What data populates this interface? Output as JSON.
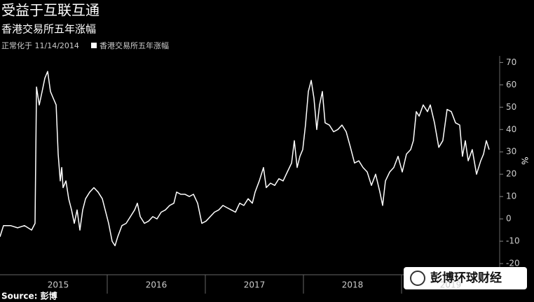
{
  "chart_data": {
    "type": "line",
    "title": "受益于互联互通",
    "subtitle": "香港交易所五年涨幅",
    "note": "正常化于 11/14/2014",
    "y_axis_label": "%",
    "source": "Source: 彭博",
    "watermark": "彭博环球财经",
    "grid": false,
    "xlim": [
      2014.907,
      2020
    ],
    "xticks": [
      {
        "value": 2015.5,
        "label": "2015"
      },
      {
        "value": 2016.5,
        "label": "2016"
      },
      {
        "value": 2017.5,
        "label": "2017"
      },
      {
        "value": 2018.5,
        "label": "2018"
      },
      {
        "value": 2019.5,
        "label": "2019"
      }
    ],
    "ylim": [
      -25,
      72
    ],
    "yticks": [
      -20,
      -10,
      0,
      10,
      20,
      30,
      40,
      50,
      60,
      70
    ],
    "x": [
      2014.907,
      2014.943,
      2015.014,
      2015.086,
      2015.157,
      2015.229,
      2015.264,
      2015.279,
      2015.307,
      2015.336,
      2015.364,
      2015.393,
      2015.421,
      2015.45,
      2015.479,
      2015.5,
      2015.521,
      2015.536,
      2015.55,
      2015.579,
      2015.607,
      2015.636,
      2015.664,
      2015.693,
      2015.721,
      2015.75,
      2015.779,
      2015.821,
      2015.864,
      2015.907,
      2015.95,
      2015.979,
      2016.014,
      2016.05,
      2016.079,
      2016.107,
      2016.15,
      2016.193,
      2016.236,
      2016.279,
      2016.307,
      2016.336,
      2016.379,
      2016.421,
      2016.464,
      2016.507,
      2016.55,
      2016.593,
      2016.636,
      2016.679,
      2016.707,
      2016.75,
      2016.793,
      2016.836,
      2016.879,
      2016.921,
      2016.964,
      2017.007,
      2017.05,
      2017.093,
      2017.136,
      2017.179,
      2017.221,
      2017.264,
      2017.307,
      2017.35,
      2017.393,
      2017.436,
      2017.479,
      2017.507,
      2017.55,
      2017.593,
      2017.621,
      2017.664,
      2017.707,
      2017.75,
      2017.793,
      2017.836,
      2017.879,
      2017.907,
      2017.936,
      2017.964,
      2017.993,
      2018.021,
      2018.05,
      2018.079,
      2018.107,
      2018.136,
      2018.164,
      2018.193,
      2018.221,
      2018.264,
      2018.307,
      2018.35,
      2018.393,
      2018.436,
      2018.479,
      2018.521,
      2018.564,
      2018.607,
      2018.65,
      2018.693,
      2018.736,
      2018.779,
      2018.807,
      2018.836,
      2018.879,
      2018.921,
      2018.964,
      2019.007,
      2019.05,
      2019.093,
      2019.121,
      2019.15,
      2019.179,
      2019.221,
      2019.264,
      2019.293,
      2019.336,
      2019.379,
      2019.421,
      2019.464,
      2019.507,
      2019.55,
      2019.593,
      2019.621,
      2019.65,
      2019.679,
      2019.721,
      2019.764,
      2019.807,
      2019.836,
      2019.864,
      2019.893
    ],
    "series": [
      {
        "name": "香港交易所五年涨幅",
        "color": "#ffffff",
        "values": [
          -8,
          -3,
          -3,
          -4,
          -3,
          -5,
          -2,
          59,
          51,
          57,
          63,
          66,
          57,
          54,
          51,
          29,
          17,
          23,
          14,
          17,
          9,
          4,
          -2,
          4,
          -5,
          4,
          9,
          12,
          14,
          12,
          9,
          4,
          -2,
          -10,
          -12,
          -8,
          -3,
          -2,
          1,
          4,
          7,
          1,
          -2,
          -1,
          1,
          0,
          3,
          4,
          6,
          7,
          12,
          11,
          11,
          10,
          11,
          7,
          -2,
          -1,
          1,
          3,
          4,
          6,
          5,
          4,
          3,
          7,
          6,
          9,
          7,
          12,
          17,
          23,
          14,
          16,
          15,
          18,
          17,
          21,
          25,
          35,
          23,
          28,
          31,
          42,
          57,
          62,
          54,
          40,
          51,
          57,
          43,
          42,
          39,
          40,
          42,
          39,
          32,
          25,
          26,
          23,
          21,
          15,
          20,
          12,
          6,
          17,
          21,
          23,
          28,
          21,
          29,
          31,
          35,
          48,
          46,
          51,
          48,
          51,
          43,
          32,
          35,
          49,
          48,
          43,
          42,
          28,
          35,
          26,
          31,
          20,
          26,
          29,
          35,
          31
        ]
      }
    ]
  }
}
